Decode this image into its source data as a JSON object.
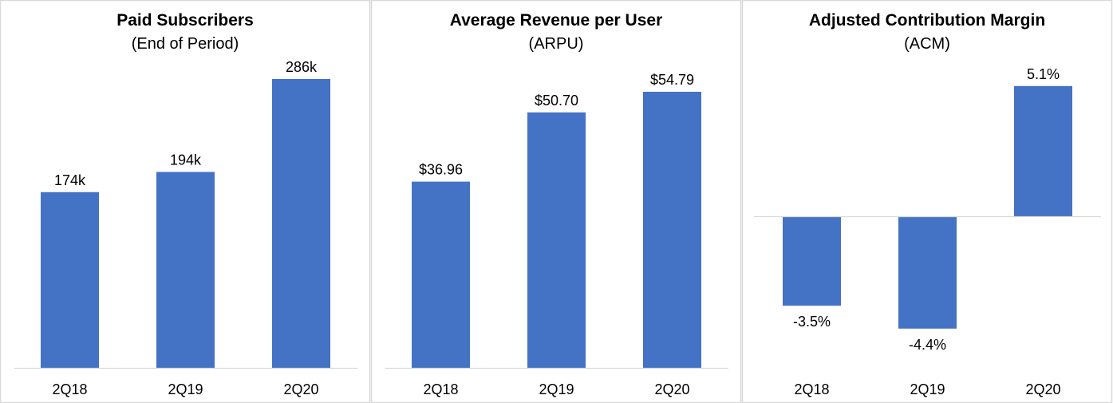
{
  "chart_data": [
    {
      "type": "bar",
      "title": "Paid Subscribers",
      "subtitle": "(End of Period)",
      "categories": [
        "2Q18",
        "2Q19",
        "2Q20"
      ],
      "values": [
        174,
        194,
        286
      ],
      "data_labels": [
        "174k",
        "194k",
        "286k"
      ],
      "unit": "k",
      "grid": false,
      "color": "#4472C4"
    },
    {
      "type": "bar",
      "title": "Average Revenue per User",
      "subtitle": "(ARPU)",
      "categories": [
        "2Q18",
        "2Q19",
        "2Q20"
      ],
      "values": [
        36.96,
        50.7,
        54.79
      ],
      "data_labels": [
        "$36.96",
        "$50.70",
        "$54.79"
      ],
      "unit": "$",
      "grid": false,
      "color": "#4472C4"
    },
    {
      "type": "bar",
      "title": "Adjusted Contribution Margin",
      "subtitle": "(ACM)",
      "categories": [
        "2Q18",
        "2Q19",
        "2Q20"
      ],
      "values": [
        -3.5,
        -4.4,
        5.1
      ],
      "data_labels": [
        "-3.5%",
        "-4.4%",
        "5.1%"
      ],
      "unit": "%",
      "grid": false,
      "color": "#4472C4"
    }
  ]
}
